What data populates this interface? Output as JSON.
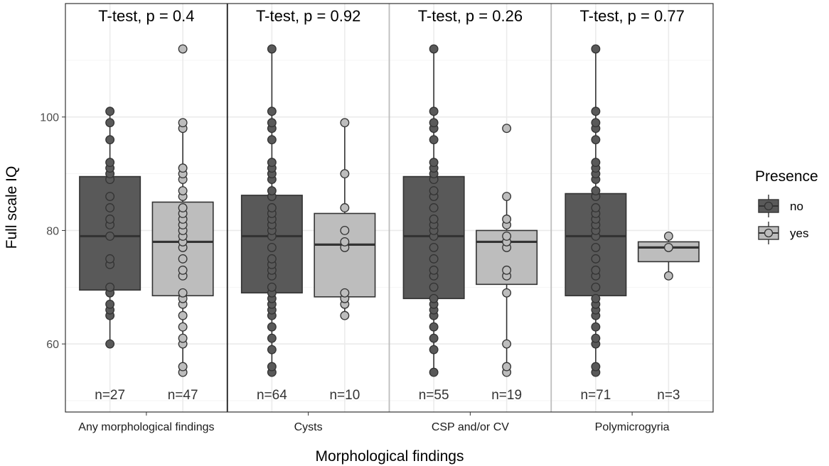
{
  "chart_data": {
    "type": "boxplot",
    "xlabel": "Morphological findings",
    "ylabel": "Full scale IQ",
    "ylim": [
      48,
      120
    ],
    "yticks": [
      60,
      80,
      100
    ],
    "grid": true,
    "legend": {
      "title": "Presence",
      "position": "right",
      "entries": [
        {
          "label": "no",
          "color": "#595959"
        },
        {
          "label": "yes",
          "color": "#bdbdbd"
        }
      ]
    },
    "categories": [
      "Any morphological findings",
      "Cysts",
      "CSP and/or CV",
      "Polymicrogyria"
    ],
    "panels": [
      {
        "category": "Any morphological findings",
        "annotation": "T-test, p = 0.4",
        "groups": [
          {
            "presence": "no",
            "n_label": "n=27",
            "whisker_low": 60,
            "q1": 69.5,
            "median": 79,
            "q3": 89.5,
            "whisker_high": 101,
            "outliers": [],
            "points": [
              60,
              65,
              66,
              67,
              69,
              70,
              74,
              75,
              79,
              81,
              82,
              84,
              86,
              89,
              90,
              91,
              92,
              96,
              99,
              101
            ]
          },
          {
            "presence": "yes",
            "n_label": "n=47",
            "whisker_low": 55,
            "q1": 68.5,
            "median": 78,
            "q3": 85,
            "whisker_high": 99,
            "outliers": [
              112
            ],
            "points": [
              55,
              56,
              60,
              61,
              63,
              65,
              67,
              68,
              69,
              72,
              73,
              75,
              77,
              78,
              79,
              80,
              81,
              82,
              83,
              84,
              86,
              87,
              89,
              90,
              91,
              98,
              99,
              112
            ]
          }
        ]
      },
      {
        "category": "Cysts",
        "annotation": "T-test, p = 0.92",
        "groups": [
          {
            "presence": "no",
            "n_label": "n=64",
            "whisker_low": 55,
            "q1": 69,
            "median": 79,
            "q3": 86.2,
            "whisker_high": 112,
            "outliers": [],
            "points": [
              55,
              56,
              59,
              61,
              63,
              65,
              66,
              67,
              68,
              69,
              70,
              72,
              73,
              74,
              75,
              77,
              79,
              80,
              81,
              82,
              83,
              84,
              86,
              87,
              89,
              90,
              91,
              92,
              96,
              98,
              99,
              101,
              112
            ]
          },
          {
            "presence": "yes",
            "n_label": "n=10",
            "whisker_low": 65,
            "q1": 68.3,
            "median": 77.5,
            "q3": 83,
            "whisker_high": 99,
            "outliers": [],
            "points": [
              65,
              67,
              68,
              69,
              77,
              78,
              80,
              84,
              90,
              99
            ]
          }
        ]
      },
      {
        "category": "CSP and/or CV",
        "annotation": "T-test, p = 0.26",
        "groups": [
          {
            "presence": "no",
            "n_label": "n=55",
            "whisker_low": 55,
            "q1": 68,
            "median": 79,
            "q3": 89.5,
            "whisker_high": 112,
            "outliers": [],
            "points": [
              55,
              59,
              61,
              63,
              65,
              66,
              67,
              68,
              70,
              72,
              73,
              75,
              77,
              79,
              80,
              81,
              82,
              84,
              86,
              87,
              89,
              90,
              91,
              92,
              96,
              98,
              99,
              101,
              112
            ]
          },
          {
            "presence": "yes",
            "n_label": "n=19",
            "whisker_low": 55,
            "q1": 70.5,
            "median": 78,
            "q3": 80,
            "whisker_high": 86,
            "outliers": [
              98
            ],
            "points": [
              55,
              56,
              60,
              69,
              72,
              73,
              77,
              78,
              79,
              81,
              82,
              86,
              98
            ]
          }
        ]
      },
      {
        "category": "Polymicrogyria",
        "annotation": "T-test, p = 0.77",
        "groups": [
          {
            "presence": "no",
            "n_label": "n=71",
            "whisker_low": 55,
            "q1": 68.5,
            "median": 79,
            "q3": 86.5,
            "whisker_high": 112,
            "outliers": [],
            "points": [
              55,
              56,
              60,
              61,
              63,
              65,
              66,
              67,
              68,
              70,
              72,
              73,
              75,
              77,
              79,
              80,
              81,
              82,
              83,
              84,
              86,
              87,
              89,
              90,
              91,
              92,
              96,
              98,
              99,
              101,
              112
            ]
          },
          {
            "presence": "yes",
            "n_label": "n=3",
            "whisker_low": 72,
            "q1": 74.5,
            "median": 77,
            "q3": 78,
            "whisker_high": 79,
            "outliers": [],
            "points": [
              72,
              77,
              79
            ]
          }
        ]
      }
    ]
  }
}
